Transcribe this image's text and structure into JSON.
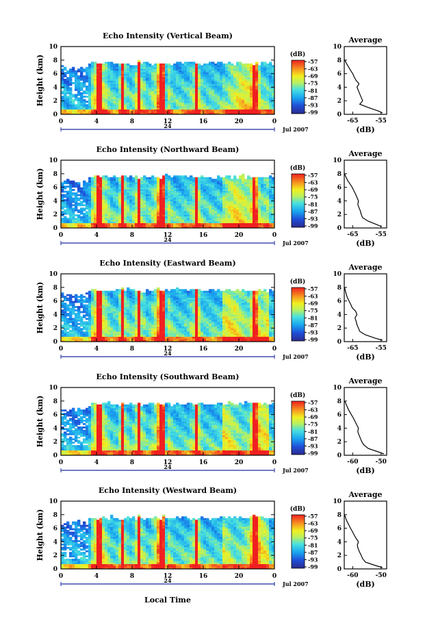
{
  "figure": {
    "xlabel": "Local Time",
    "ylabel": "Height (km)",
    "date_label": "Jul 2007",
    "day_marker": "24",
    "colorbar_unit": "(dB)",
    "colorbar_ticks": [
      "-57",
      "-63",
      "-69",
      "-75",
      "-81",
      "-87",
      "-93",
      "-99"
    ],
    "side_title": "Average",
    "side_xlabel": "(dB)"
  },
  "chart_data": [
    {
      "type": "heatmap",
      "title": "Echo Intensity (Vertical Beam)",
      "ylabel": "Height (km)",
      "xticks": [
        "0",
        "4",
        "8",
        "12",
        "16",
        "20",
        "0"
      ],
      "yticks": [
        "0",
        "2",
        "4",
        "6",
        "8",
        "10"
      ],
      "xlim": [
        0,
        24
      ],
      "ylim": [
        0,
        10
      ],
      "color_range_db": [
        -99,
        -57
      ],
      "average_profile": {
        "title": "Average",
        "xlabel": "(dB)",
        "xticks": [
          "-65",
          "-55"
        ],
        "xlim": [
          -68,
          -53
        ],
        "yticks": [
          "0",
          "2",
          "4",
          "6",
          "8",
          "10"
        ],
        "height_km": [
          0.2,
          0.5,
          1.0,
          1.5,
          2.0,
          2.5,
          3.0,
          3.5,
          4.0,
          4.5,
          5.0,
          5.5,
          6.0,
          6.5,
          7.0,
          7.5,
          8.0
        ],
        "db": [
          -54.5,
          -56.0,
          -59.5,
          -62.5,
          -61.5,
          -62.0,
          -62.5,
          -63.0,
          -63.5,
          -62.8,
          -63.8,
          -64.5,
          -65.0,
          -65.8,
          -66.5,
          -67.2,
          -67.8
        ]
      }
    },
    {
      "type": "heatmap",
      "title": "Echo Intensity (Northward Beam)",
      "ylabel": "Height (km)",
      "xticks": [
        "0",
        "4",
        "8",
        "12",
        "16",
        "20",
        "0"
      ],
      "yticks": [
        "0",
        "2",
        "4",
        "6",
        "8",
        "10"
      ],
      "xlim": [
        0,
        24
      ],
      "ylim": [
        0,
        10
      ],
      "color_range_db": [
        -99,
        -57
      ],
      "average_profile": {
        "title": "Average",
        "xlabel": "(dB)",
        "xticks": [
          "-65",
          "-55"
        ],
        "xlim": [
          -68,
          -53
        ],
        "yticks": [
          "0",
          "2",
          "4",
          "6",
          "8",
          "10"
        ],
        "height_km": [
          0.2,
          0.5,
          1.0,
          1.5,
          2.0,
          2.5,
          3.0,
          3.5,
          4.0,
          4.5,
          5.0,
          5.5,
          6.0,
          6.5,
          7.0,
          7.5,
          8.0
        ],
        "db": [
          -54.8,
          -56.5,
          -59.5,
          -61.5,
          -62.0,
          -62.3,
          -62.8,
          -63.2,
          -63.0,
          -63.5,
          -64.0,
          -64.6,
          -65.2,
          -66.0,
          -66.8,
          -67.4,
          -67.9
        ]
      }
    },
    {
      "type": "heatmap",
      "title": "Echo Intensity (Eastward Beam)",
      "ylabel": "Height (km)",
      "xticks": [
        "0",
        "4",
        "8",
        "12",
        "16",
        "20",
        "0"
      ],
      "yticks": [
        "0",
        "2",
        "4",
        "6",
        "8",
        "10"
      ],
      "xlim": [
        0,
        24
      ],
      "ylim": [
        0,
        10
      ],
      "color_range_db": [
        -99,
        -57
      ],
      "average_profile": {
        "title": "Average",
        "xlabel": "(dB)",
        "xticks": [
          "-65",
          "-55"
        ],
        "xlim": [
          -68,
          -53
        ],
        "yticks": [
          "0",
          "2",
          "4",
          "6",
          "8",
          "10"
        ],
        "height_km": [
          0.2,
          0.5,
          1.0,
          1.5,
          2.0,
          2.5,
          3.0,
          3.5,
          4.0,
          4.5,
          5.0,
          5.5,
          6.0,
          6.5,
          7.0,
          7.5,
          8.0
        ],
        "db": [
          -54.5,
          -57.0,
          -60.5,
          -62.5,
          -63.0,
          -63.5,
          -63.8,
          -64.2,
          -63.5,
          -64.0,
          -65.2,
          -65.7,
          -66.3,
          -66.9,
          -67.3,
          -67.6,
          -67.9
        ]
      }
    },
    {
      "type": "heatmap",
      "title": "Echo Intensity (Southward Beam)",
      "ylabel": "Height (km)",
      "xticks": [
        "0",
        "4",
        "8",
        "12",
        "16",
        "20",
        "0"
      ],
      "yticks": [
        "0",
        "2",
        "4",
        "6",
        "8",
        "10"
      ],
      "xlim": [
        0,
        24
      ],
      "ylim": [
        0,
        10
      ],
      "color_range_db": [
        -99,
        -57
      ],
      "average_profile": {
        "title": "Average",
        "xlabel": "(dB)",
        "xticks": [
          "-60",
          "-50"
        ],
        "xlim": [
          -63,
          -48
        ],
        "yticks": [
          "0",
          "2",
          "4",
          "6",
          "8",
          "10"
        ],
        "height_km": [
          0.2,
          0.5,
          1.0,
          1.5,
          2.0,
          2.5,
          3.0,
          3.5,
          4.0,
          4.5,
          5.0,
          5.5,
          6.0,
          6.5,
          7.0,
          7.5,
          8.0
        ],
        "db": [
          -49.0,
          -51.0,
          -54.5,
          -56.0,
          -56.8,
          -57.3,
          -57.8,
          -58.2,
          -58.0,
          -58.6,
          -59.2,
          -59.8,
          -60.5,
          -61.2,
          -61.8,
          -62.3,
          -62.8
        ]
      }
    },
    {
      "type": "heatmap",
      "title": "Echo Intensity (Westward Beam)",
      "ylabel": "Height (km)",
      "xticks": [
        "0",
        "4",
        "8",
        "12",
        "16",
        "20",
        "0"
      ],
      "yticks": [
        "0",
        "2",
        "4",
        "6",
        "8",
        "10"
      ],
      "xlim": [
        0,
        24
      ],
      "ylim": [
        0,
        10
      ],
      "color_range_db": [
        -99,
        -57
      ],
      "average_profile": {
        "title": "Average",
        "xlabel": "(dB)",
        "xticks": [
          "-60",
          "-50"
        ],
        "xlim": [
          -63,
          -48
        ],
        "yticks": [
          "0",
          "2",
          "4",
          "6",
          "8",
          "10"
        ],
        "height_km": [
          0.2,
          0.5,
          1.0,
          1.5,
          2.0,
          2.5,
          3.0,
          3.5,
          4.0,
          4.5,
          5.0,
          5.5,
          6.0,
          6.5,
          7.0,
          7.5,
          8.0
        ],
        "db": [
          -49.5,
          -52.0,
          -55.5,
          -56.5,
          -57.0,
          -57.6,
          -58.1,
          -58.4,
          -58.0,
          -58.8,
          -59.5,
          -60.1,
          -60.8,
          -61.4,
          -62.0,
          -62.5,
          -62.9
        ]
      }
    }
  ]
}
